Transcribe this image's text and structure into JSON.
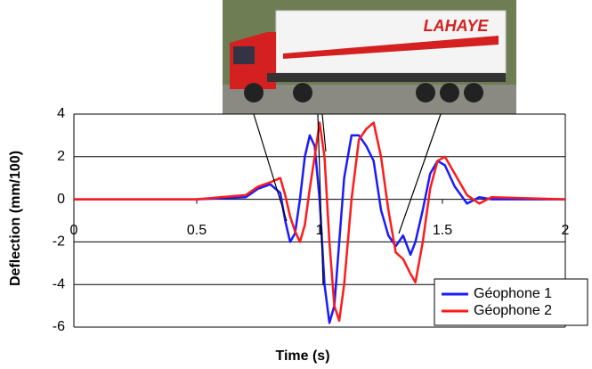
{
  "chart_data": {
    "type": "line",
    "x_label": "Time (s)",
    "y_label": "Deflection (mm/100)",
    "x": [
      0,
      0.2,
      0.5,
      0.7,
      0.75,
      0.8,
      0.84,
      0.86,
      0.88,
      0.9,
      0.92,
      0.94,
      0.96,
      0.98,
      1.0,
      1.02,
      1.04,
      1.06,
      1.08,
      1.1,
      1.13,
      1.16,
      1.19,
      1.22,
      1.25,
      1.28,
      1.31,
      1.34,
      1.37,
      1.39,
      1.42,
      1.45,
      1.48,
      1.51,
      1.55,
      1.6,
      1.65,
      1.7,
      2
    ],
    "series": [
      {
        "name": "Géophone 1",
        "color": "#1a1aff",
        "values": [
          0,
          0,
          0,
          0.1,
          0.5,
          0.7,
          0.3,
          -1,
          -2,
          -1.6,
          0,
          2,
          3,
          2.5,
          0,
          -4,
          -5.8,
          -5,
          -2,
          1,
          3,
          3,
          2.5,
          1.8,
          -0.5,
          -1.7,
          -2.2,
          -1.7,
          -2.6,
          -2,
          -0.5,
          1.2,
          1.8,
          1.6,
          0.6,
          -0.2,
          0.1,
          0,
          0
        ]
      },
      {
        "name": "Géophone 2",
        "color": "#ff1a1a",
        "values": [
          0,
          0,
          0,
          0.2,
          0.6,
          0.8,
          1,
          0.2,
          -0.8,
          -1.5,
          -2,
          -1.2,
          0.5,
          2,
          3.6,
          2,
          -2,
          -5,
          -5.7,
          -4,
          0,
          2.8,
          3.3,
          3.6,
          2,
          -0.5,
          -2.5,
          -2.8,
          -3.5,
          -3.9,
          -2,
          0.5,
          1.8,
          2,
          1.2,
          0.2,
          -0.2,
          0.1,
          0
        ]
      }
    ],
    "xlim": [
      0,
      2
    ],
    "xticks": [
      0,
      0.5,
      1,
      1.5,
      2
    ],
    "ylim": [
      -6,
      4
    ],
    "yticks": [
      -6,
      -4,
      -2,
      0,
      2,
      4
    ],
    "grid": true,
    "legend": "lower right"
  }
}
